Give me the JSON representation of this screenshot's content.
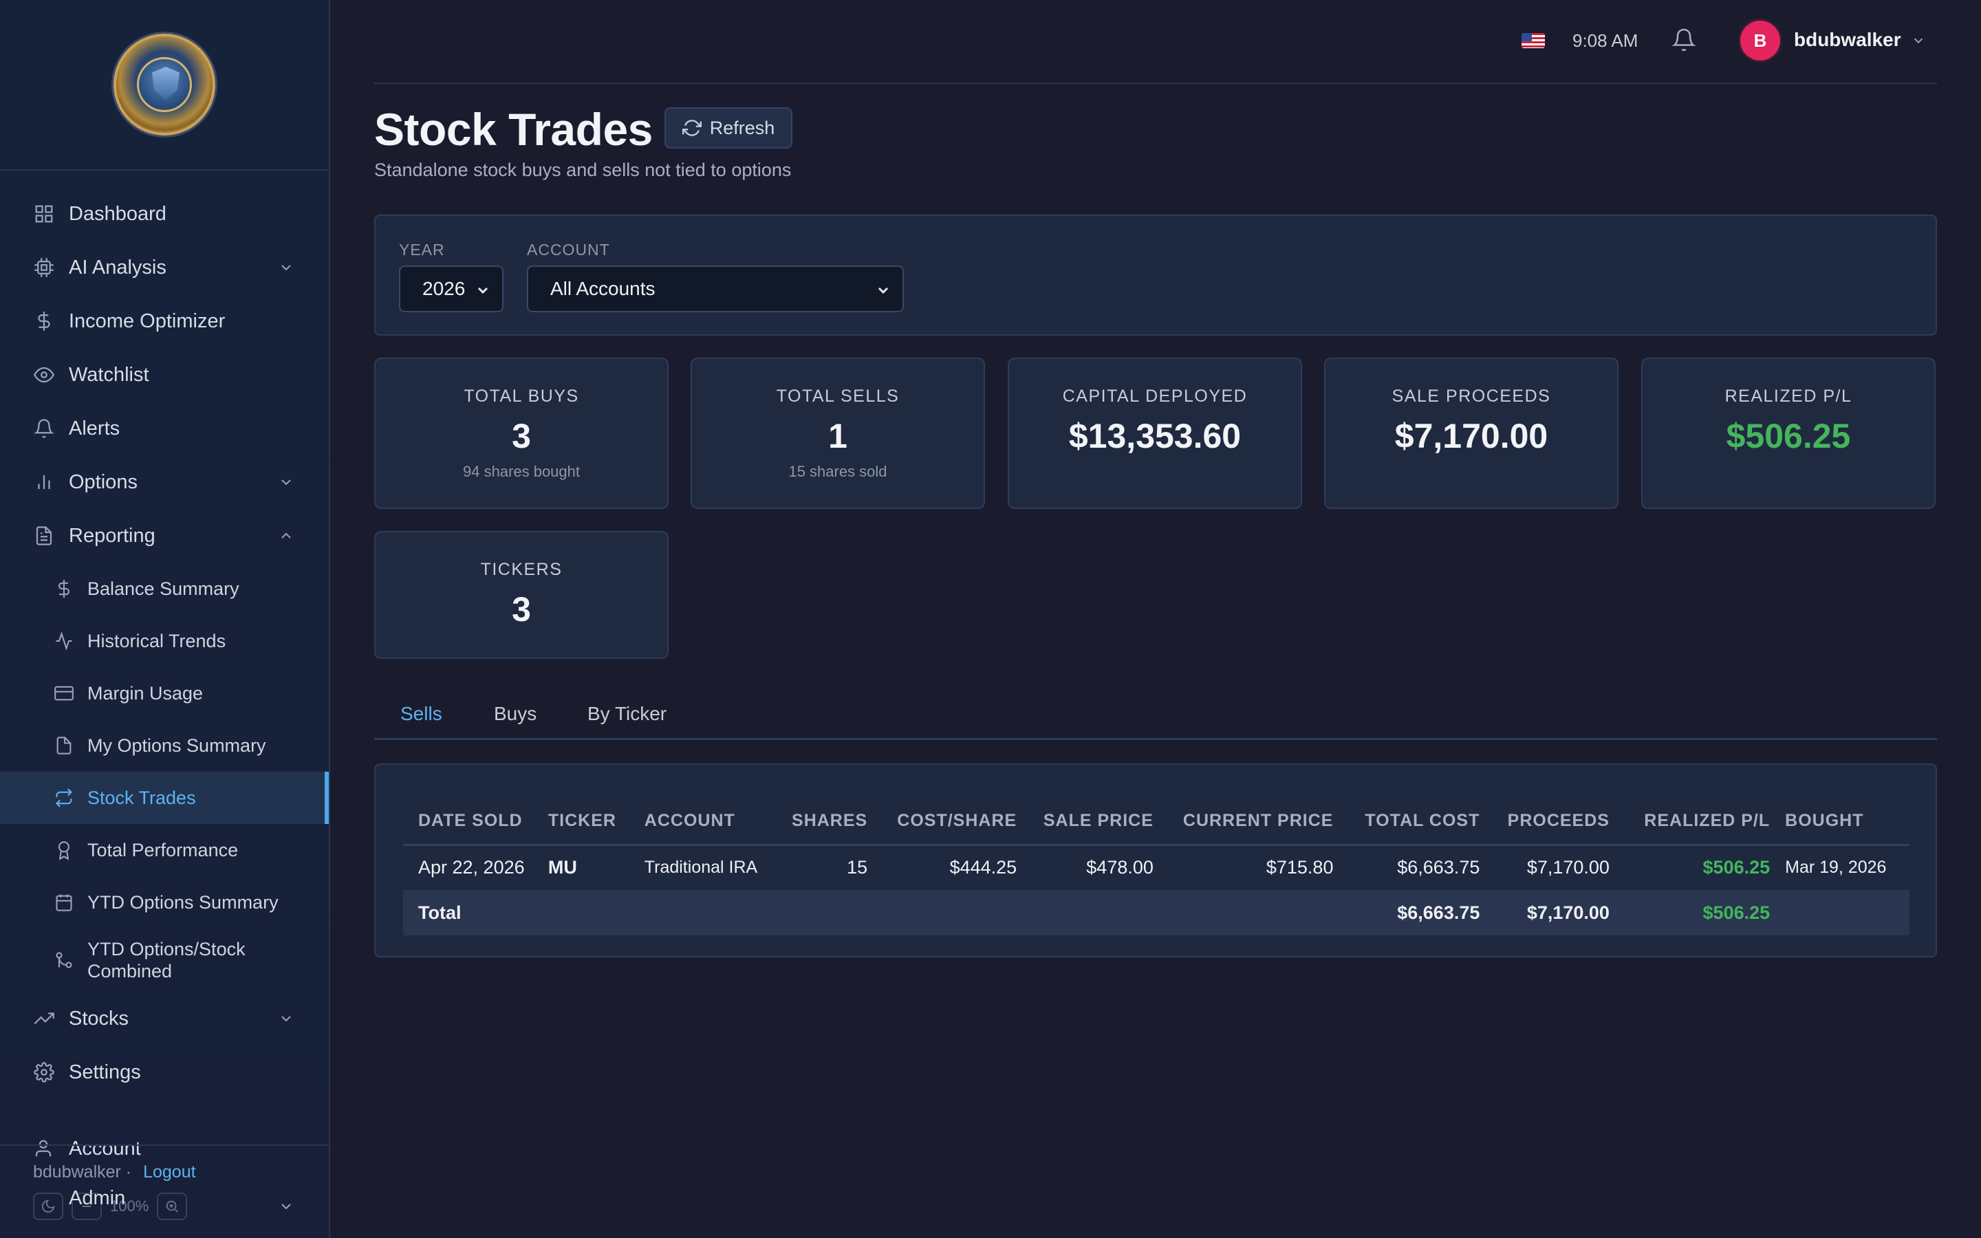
{
  "app": {
    "logo_alt": "Options Analytics Platform logo",
    "logo_text": "OPTIONS ANALYTICS PLATFORM · OPTIONLOGIC · SECURE GROWTH"
  },
  "sidebar": {
    "items": [
      {
        "label": "Dashboard",
        "icon": "grid-icon"
      },
      {
        "label": "AI Analysis",
        "icon": "cpu-icon",
        "expandable": true
      },
      {
        "label": "Income Optimizer",
        "icon": "dollar-icon"
      },
      {
        "label": "Watchlist",
        "icon": "eye-icon"
      },
      {
        "label": "Alerts",
        "icon": "bell-icon"
      },
      {
        "label": "Options",
        "icon": "bar-chart-icon",
        "expandable": true
      },
      {
        "label": "Reporting",
        "icon": "document-icon",
        "expanded": true
      }
    ],
    "reporting_sub": [
      {
        "label": "Balance Summary",
        "icon": "dollar-icon"
      },
      {
        "label": "Historical Trends",
        "icon": "activity-icon"
      },
      {
        "label": "Margin Usage",
        "icon": "credit-card-icon"
      },
      {
        "label": "My Options Summary",
        "icon": "file-icon"
      },
      {
        "label": "Stock Trades",
        "icon": "repeat-icon",
        "active": true
      },
      {
        "label": "Total Performance",
        "icon": "award-icon"
      },
      {
        "label": "YTD Options Summary",
        "icon": "calendar-icon"
      },
      {
        "label": "YTD Options/Stock Combined",
        "icon": "git-merge-icon"
      }
    ],
    "after": [
      {
        "label": "Stocks",
        "icon": "trending-up-icon",
        "expandable": true
      },
      {
        "label": "Settings",
        "icon": "gear-icon"
      },
      {
        "label": "Account",
        "icon": "user-icon"
      },
      {
        "label": "Admin",
        "icon": "shield-icon",
        "expandable": true
      }
    ],
    "footer": {
      "username": "bdubwalker ·",
      "logout": "Logout",
      "zoom": "100%"
    }
  },
  "topbar": {
    "time": "9:08 AM",
    "avatar_initial": "B",
    "username": "bdubwalker"
  },
  "page": {
    "title": "Stock Trades",
    "refresh_label": "Refresh",
    "subtitle": "Standalone stock buys and sells not tied to options"
  },
  "filters": {
    "year_label": "YEAR",
    "year_value": "2026",
    "account_label": "ACCOUNT",
    "account_value": "All Accounts"
  },
  "stats": [
    {
      "label": "TOTAL BUYS",
      "value": "3",
      "sub": "94 shares bought"
    },
    {
      "label": "TOTAL SELLS",
      "value": "1",
      "sub": "15 shares sold"
    },
    {
      "label": "CAPITAL DEPLOYED",
      "value": "$13,353.60"
    },
    {
      "label": "SALE PROCEEDS",
      "value": "$7,170.00"
    },
    {
      "label": "REALIZED P/L",
      "value": "$506.25",
      "color": "#45b55c"
    },
    {
      "label": "TICKERS",
      "value": "3"
    }
  ],
  "tabs": [
    "Sells",
    "Buys",
    "By Ticker"
  ],
  "active_tab": "Sells",
  "table": {
    "headers": [
      "DATE SOLD",
      "TICKER",
      "ACCOUNT",
      "SHARES",
      "COST/SHARE",
      "SALE PRICE",
      "CURRENT PRICE",
      "TOTAL COST",
      "PROCEEDS",
      "REALIZED P/L",
      "BOUGHT"
    ],
    "rows": [
      [
        "Apr 22, 2026",
        "MU",
        "Traditional IRA",
        "15",
        "$444.25",
        "$478.00",
        "$715.80",
        "$6,663.75",
        "$7,170.00",
        "$506.25",
        "Mar 19, 2026"
      ]
    ],
    "total": {
      "label": "Total",
      "total_cost": "$6,663.75",
      "proceeds": "$7,170.00",
      "realized_pl": "$506.25"
    }
  },
  "colors": {
    "accent": "#5cb3f0",
    "positive": "#45b55c",
    "avatar": "#e4245f",
    "background": "#1a1c2e"
  }
}
